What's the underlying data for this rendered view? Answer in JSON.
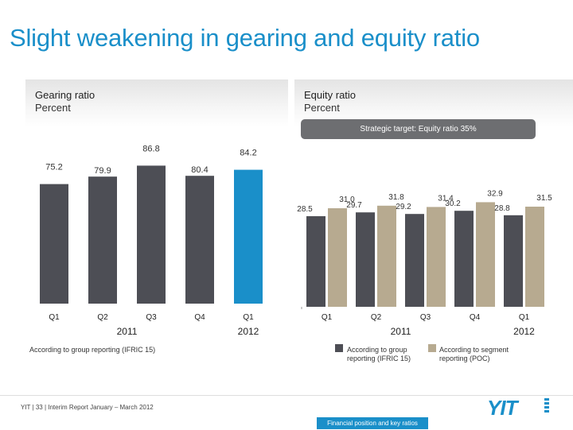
{
  "title": "Slight weakening in gearing and equity ratio",
  "left_panel": {
    "title": "Gearing ratio",
    "subtitle": "Percent"
  },
  "right_panel": {
    "title": "Equity ratio",
    "subtitle": "Percent"
  },
  "strategic_target": "Strategic target: Equity ratio 35%",
  "left_note": "According to group reporting (IFRIC 15)",
  "legend": [
    {
      "label": "According to group reporting (IFRIC 15)",
      "color": "#4d4e55"
    },
    {
      "label": "According to segment reporting (POC)",
      "color": "#b7aa90"
    }
  ],
  "footer": {
    "text": "YIT  | 33  |  Interim Report January – March 2012",
    "box_label": "Financial position and key ratios",
    "logo": "YIT"
  },
  "colors": {
    "accent": "#1a8fc9",
    "dark_bar": "#4d4e55",
    "tan_bar": "#b7aa90"
  },
  "chart_data": [
    {
      "type": "bar",
      "title": "Gearing ratio",
      "ylabel": "Percent",
      "categories": [
        "Q1",
        "Q2",
        "Q3",
        "Q4",
        "Q1"
      ],
      "years": [
        {
          "label": "2011",
          "span": [
            0,
            3
          ]
        },
        {
          "label": "2012",
          "span": [
            4,
            4
          ]
        }
      ],
      "series": [
        {
          "name": "According to group reporting (IFRIC 15)",
          "values": [
            75.2,
            79.9,
            86.8,
            80.4,
            84.2
          ]
        }
      ],
      "highlight_index": 4,
      "ylim": [
        0,
        90
      ]
    },
    {
      "type": "bar",
      "title": "Equity ratio",
      "ylabel": "Percent",
      "categories": [
        "Q1",
        "Q2",
        "Q3",
        "Q4",
        "Q1"
      ],
      "years": [
        {
          "label": "2011",
          "span": [
            0,
            3
          ]
        },
        {
          "label": "2012",
          "span": [
            4,
            4
          ]
        }
      ],
      "series": [
        {
          "name": "According to group reporting (IFRIC 15)",
          "values": [
            28.5,
            29.7,
            29.2,
            30.2,
            28.8
          ]
        },
        {
          "name": "According to segment reporting (POC)",
          "values": [
            31.0,
            31.8,
            31.4,
            32.9,
            31.5
          ]
        }
      ],
      "ylim": [
        0,
        35
      ]
    }
  ]
}
